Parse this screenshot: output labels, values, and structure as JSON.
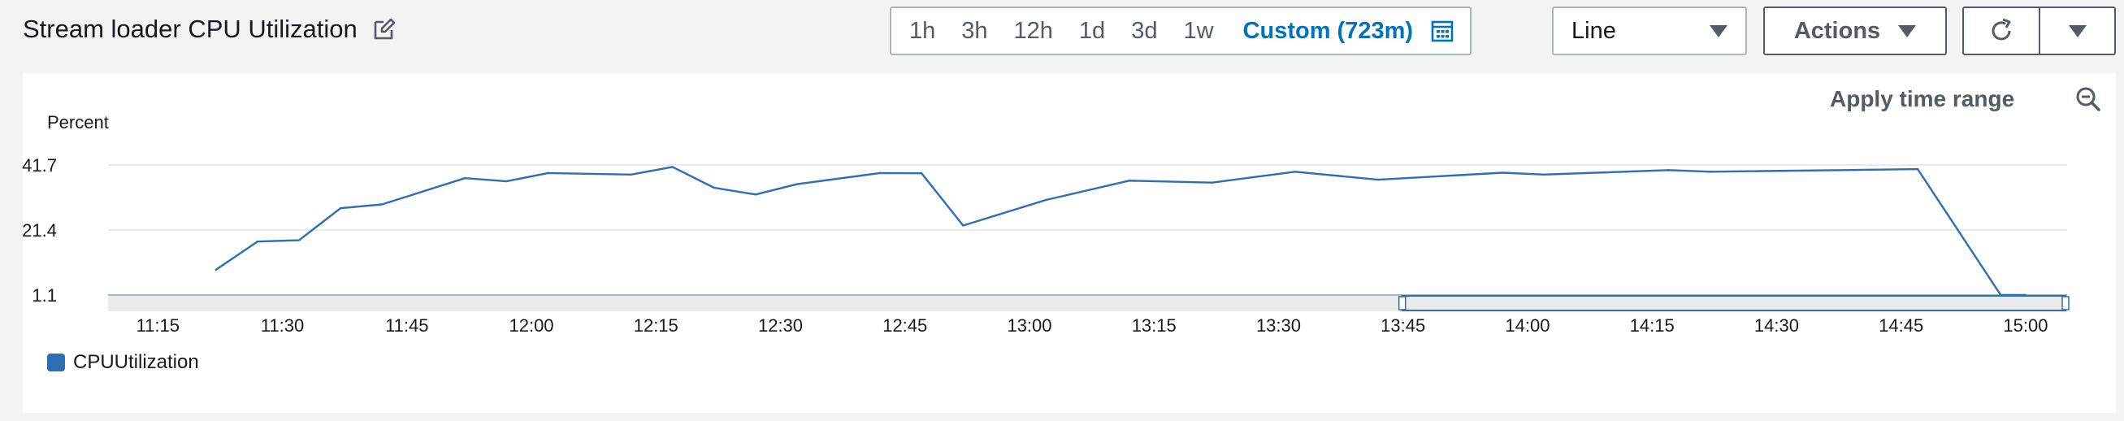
{
  "header": {
    "title": "Stream loader CPU Utilization",
    "ranges": [
      "1h",
      "3h",
      "12h",
      "1d",
      "3d",
      "1w"
    ],
    "custom_range": "Custom (723m)",
    "chart_type_select": "Line",
    "actions_label": "Actions"
  },
  "panel": {
    "apply_time_range": "Apply time range"
  },
  "colors": {
    "series": "#2f6db5",
    "accent": "#0073bb"
  },
  "chart_data": {
    "type": "line",
    "ylabel": "Percent",
    "yticks": [
      "41.7",
      "21.4",
      "1.1"
    ],
    "ytick_values": [
      41.7,
      21.4,
      1.1
    ],
    "ylim": [
      1.1,
      41.7
    ],
    "xticks": [
      "11:15",
      "11:30",
      "11:45",
      "12:00",
      "12:15",
      "12:30",
      "12:45",
      "13:00",
      "13:15",
      "13:30",
      "13:45",
      "14:00",
      "14:15",
      "14:30",
      "14:45",
      "15:00"
    ],
    "xlim": [
      "11:09",
      "15:05"
    ],
    "grid": "horizontal",
    "legend": "bottom-left",
    "series": [
      {
        "name": "CPUUtilization",
        "x": [
          "11:22",
          "11:27",
          "11:32",
          "11:37",
          "11:42",
          "11:52",
          "11:57",
          "12:02",
          "12:12",
          "12:17",
          "12:22",
          "12:27",
          "12:32",
          "12:42",
          "12:47",
          "12:52",
          "13:02",
          "13:12",
          "13:22",
          "13:32",
          "13:42",
          "13:57",
          "14:02",
          "14:17",
          "14:22",
          "14:47",
          "14:57",
          "15:00"
        ],
        "values": [
          9.0,
          17.8,
          18.2,
          28.2,
          29.4,
          37.6,
          36.6,
          39.2,
          38.7,
          41.1,
          34.6,
          32.5,
          35.7,
          39.2,
          39.1,
          22.8,
          30.8,
          36.8,
          36.2,
          39.6,
          37.1,
          39.3,
          38.7,
          40.1,
          39.6,
          40.4,
          1.1,
          1.1
        ]
      }
    ],
    "time_window_selection": [
      "13:45",
      "15:05"
    ]
  }
}
